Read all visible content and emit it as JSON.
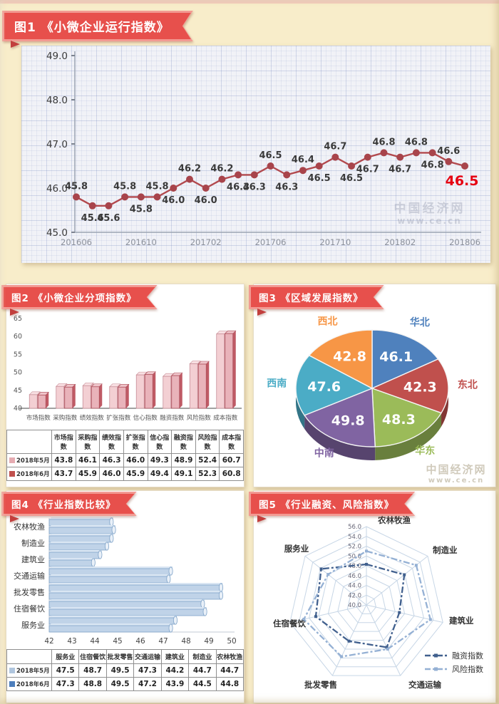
{
  "page": {
    "watermark": {
      "line1": "中国经济网",
      "line2": "www.ce.cn"
    }
  },
  "panels": [
    {
      "title": "图1 《小微企业运行指数》"
    },
    {
      "title": "图2 《小微企业分项指数》"
    },
    {
      "title": "图3 《区域发展指数》"
    },
    {
      "title": "图4 《行业指数比较》"
    },
    {
      "title": "图5 《行业融资、风险指数》"
    }
  ],
  "chart_data": [
    {
      "id": "run-index-line",
      "type": "line",
      "title": "小微企业运行指数",
      "x_tick_labels": [
        "201606",
        "201610",
        "201702",
        "201706",
        "201710",
        "201802",
        "201806"
      ],
      "x_tick_interval": 4,
      "values": [
        45.8,
        45.6,
        45.6,
        45.8,
        45.8,
        45.8,
        46.0,
        46.2,
        46.0,
        46.2,
        46.3,
        46.3,
        46.5,
        46.3,
        46.4,
        46.5,
        46.7,
        46.5,
        46.7,
        46.8,
        46.7,
        46.8,
        46.8,
        46.6,
        46.5
      ],
      "label_positions": [
        "above",
        "below",
        "below",
        "above",
        "below",
        "above",
        "below",
        "above",
        "below",
        "above",
        "below",
        "below",
        "above",
        "below",
        "above",
        "below",
        "above",
        "below",
        "below",
        "above",
        "below",
        "above",
        "below",
        "above",
        "below"
      ],
      "ylim": [
        45.0,
        49.0
      ],
      "ytick_labels": [
        "45.0",
        "46.0",
        "47.0",
        "48.0",
        "49.0"
      ],
      "grid": true,
      "line_color": "#b2494e",
      "marker_color": "#a8444b",
      "label_color": "#3a3a3a",
      "last_label_color": "#e60012"
    },
    {
      "id": "sub-index-bars",
      "type": "bar",
      "categories": [
        "市场指数",
        "采购指数",
        "绩效指数",
        "扩张指数",
        "信心指数",
        "融资指数",
        "风险指数",
        "成本指数"
      ],
      "series": [
        {
          "name": "2018年5月",
          "values": [
            43.8,
            46.1,
            46.3,
            46.0,
            49.3,
            48.9,
            52.4,
            60.7
          ],
          "color": "#f3cfd3",
          "top_color": "#f8dfe2",
          "side_color": "#dba6ad",
          "edge_color": "#c78e97",
          "legend_color": "#e5abb1"
        },
        {
          "name": "2018年6月",
          "values": [
            43.7,
            45.9,
            46.0,
            45.9,
            49.4,
            49.1,
            52.3,
            60.8
          ],
          "color": "#e9b3ba",
          "top_color": "#efc4ca",
          "side_color": "#bf5a65",
          "edge_color": "#ad4f5a",
          "legend_color": "#c0504d"
        }
      ],
      "ylim": [
        40,
        65
      ],
      "yticks": [
        40,
        45,
        50,
        55,
        60,
        65
      ]
    },
    {
      "id": "region-pie",
      "type": "pie",
      "labels": [
        "华北",
        "东北",
        "华东",
        "中南",
        "西南",
        "西北"
      ],
      "values": [
        46.1,
        42.3,
        48.3,
        49.8,
        47.6,
        42.8
      ],
      "colors": [
        "#4f81bd",
        "#c0504d",
        "#9bbb59",
        "#8064a2",
        "#4bacc6",
        "#f79646"
      ]
    },
    {
      "id": "industry-hbar",
      "type": "bar",
      "orientation": "horizontal",
      "categories": [
        "农林牧渔",
        "制造业",
        "建筑业",
        "交通运输",
        "批发零售",
        "住宿餐饮",
        "服务业"
      ],
      "xlim": [
        42,
        50
      ],
      "xticks": [
        42,
        43,
        44,
        45,
        46,
        47,
        48,
        49,
        50
      ],
      "bar_color": "#c0d3e8",
      "bar_top": "#dae6f3",
      "bar_side": "#93b4d6",
      "bar_edge": "#7fa3c8",
      "table": {
        "col_headers": [
          "服务业",
          "住宿餐饮",
          "批发零售",
          "交通运输",
          "建筑业",
          "制造业",
          "农林牧渔"
        ],
        "rows": [
          {
            "name": "2018年5月",
            "legend_color": "#b0c6de",
            "values": [
              47.5,
              48.7,
              49.5,
              47.3,
              44.2,
              44.7,
              44.7
            ]
          },
          {
            "name": "2018年6月",
            "legend_color": "#4d7ebc",
            "values": [
              47.3,
              48.8,
              49.5,
              47.2,
              43.9,
              44.5,
              44.8
            ]
          }
        ]
      }
    },
    {
      "id": "finance-risk-radar",
      "type": "radar",
      "categories": [
        "农林牧渔",
        "制造业",
        "建筑业",
        "交通运输",
        "批发零售",
        "住宿餐饮",
        "服务业"
      ],
      "rlim": [
        40,
        56
      ],
      "rtick_labels": [
        "40.0",
        "42.0",
        "44.0",
        "46.0",
        "48.0",
        "50.0",
        "52.0",
        "54.0",
        "56.0"
      ],
      "series": [
        {
          "name": "融资指数",
          "color": "#41608e",
          "values": [
            48.3,
            49.9,
            46.9,
            49.6,
            48.2,
            50.6,
            51.8
          ]
        },
        {
          "name": "风险指数",
          "color": "#94b0d4",
          "values": [
            51.0,
            53.0,
            53.4,
            50.0,
            51.7,
            53.1,
            50.0
          ]
        }
      ],
      "legend_position": "bottom-right"
    }
  ]
}
